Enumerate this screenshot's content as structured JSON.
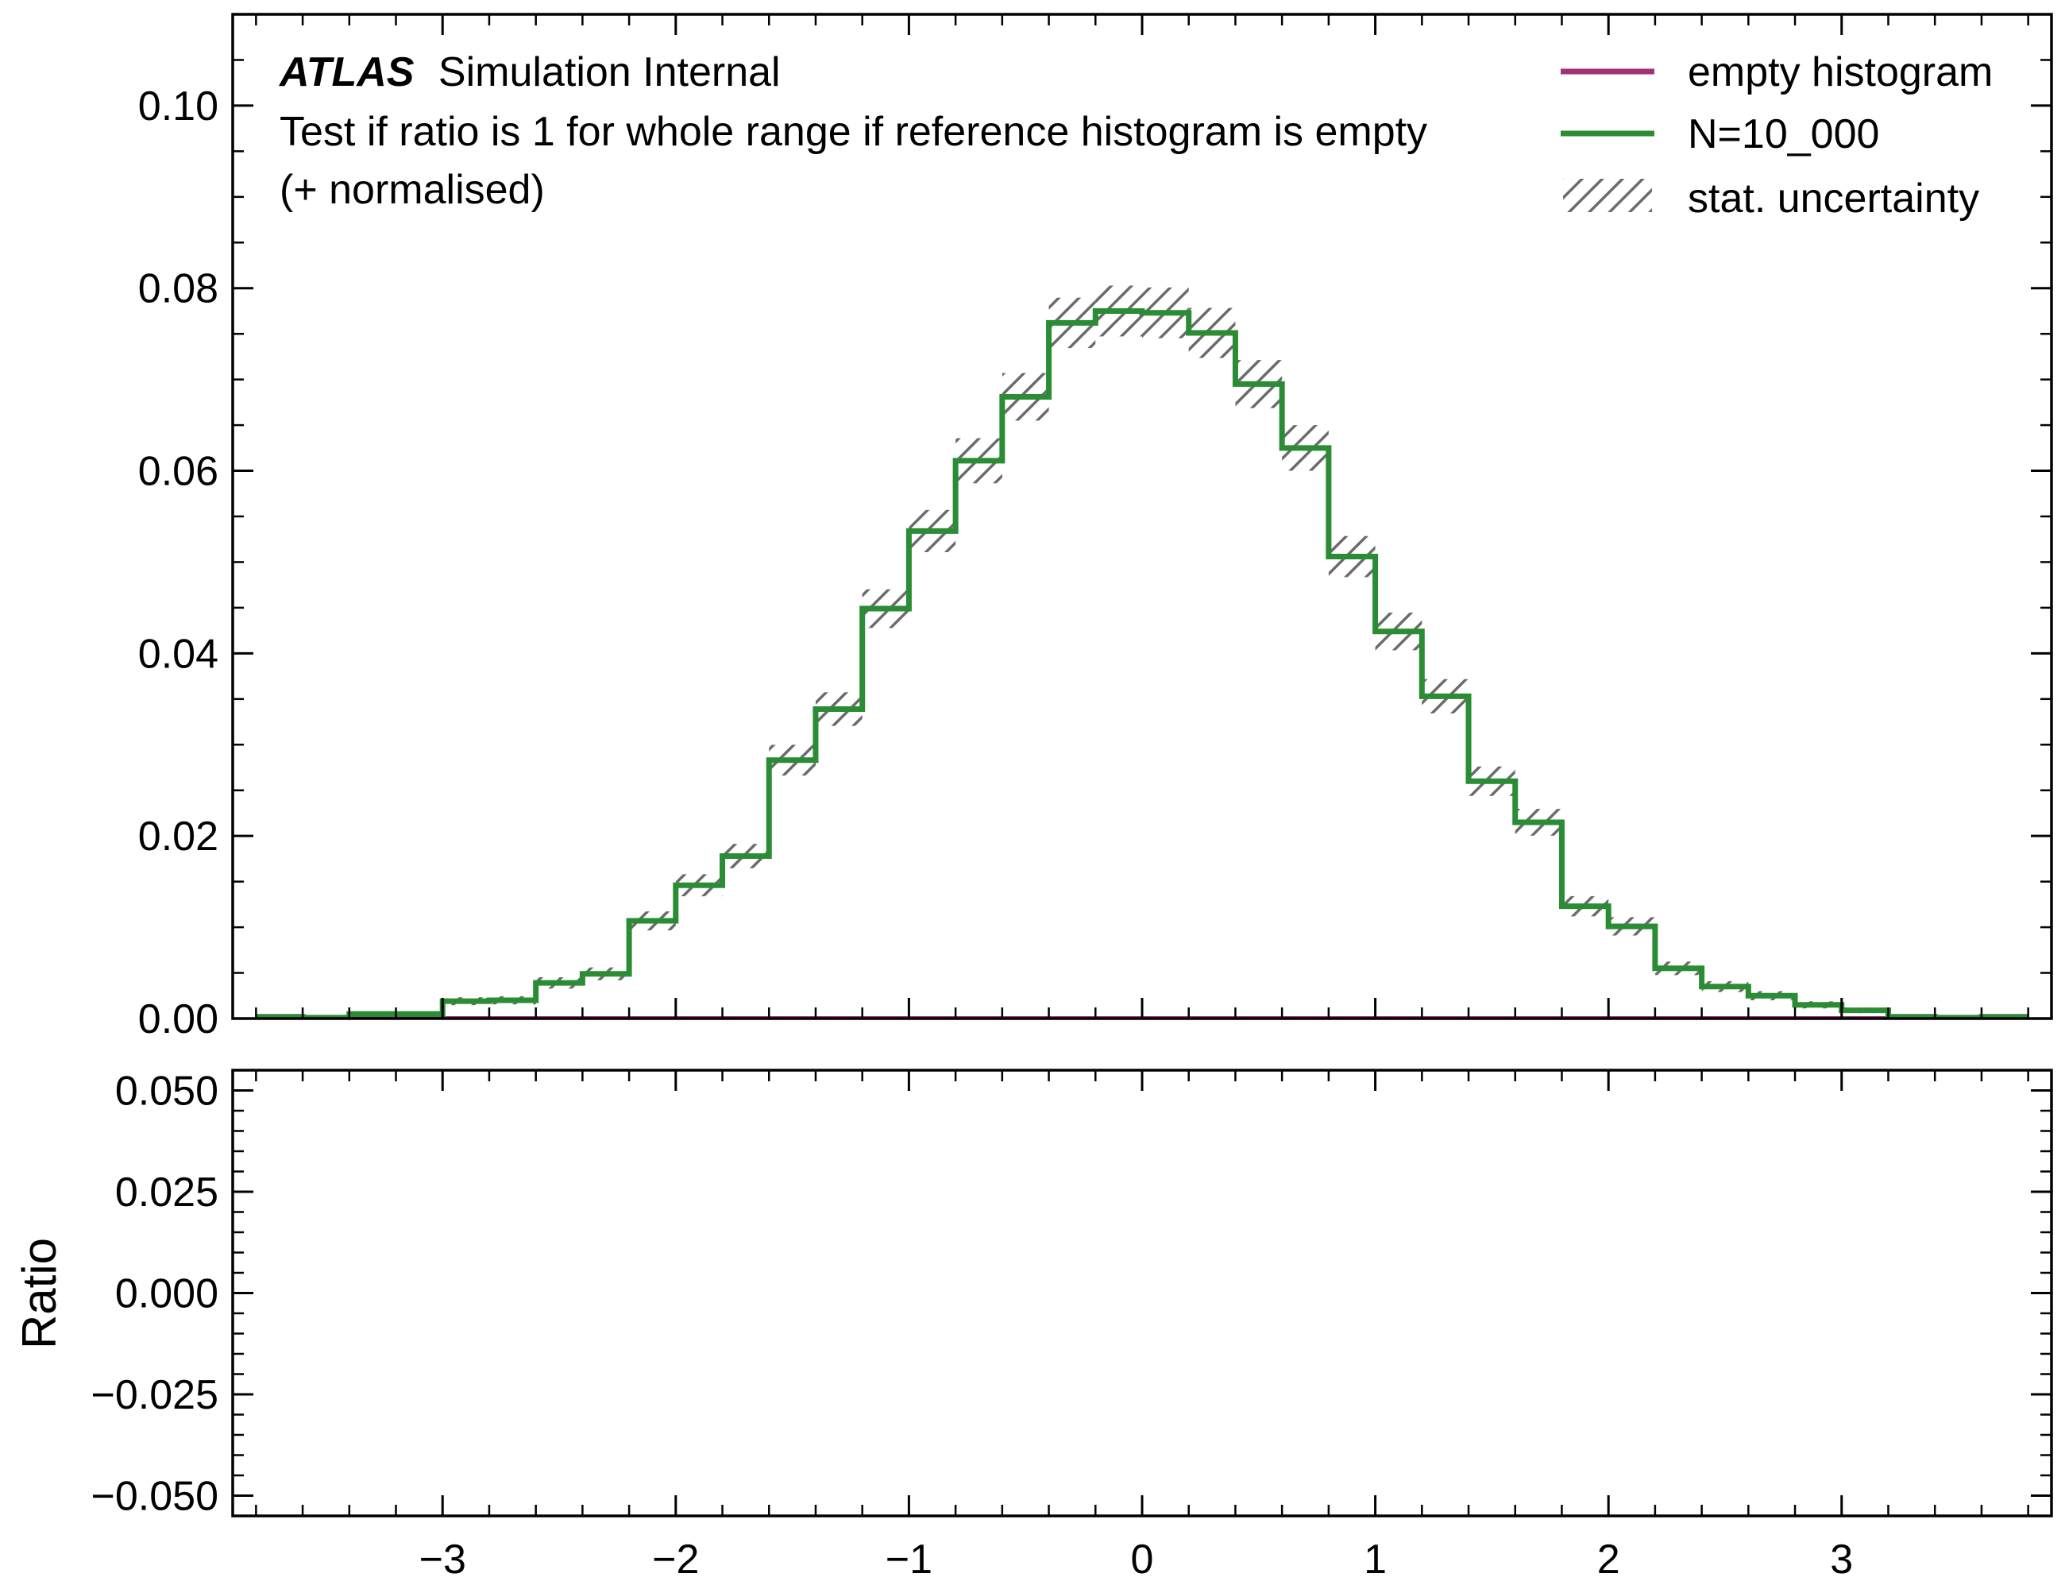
{
  "chart_data": {
    "type": "histogram",
    "experiment_label": "ATLAS",
    "experiment_status": "Simulation Internal",
    "annotation_lines": [
      "Test if ratio is 1 for whole range if reference histogram is empty",
      "(+ normalised)"
    ],
    "main_panel": {
      "ylim": [
        0,
        0.11
      ],
      "xlim": [
        -3.9,
        3.9
      ],
      "y_tick_labels": [
        "0.00",
        "0.02",
        "0.04",
        "0.06",
        "0.08",
        "0.10"
      ],
      "y_ticks": [
        0,
        0.02,
        0.04,
        0.06,
        0.08,
        0.1
      ],
      "bin_edges": [
        -3.8,
        -3.6,
        -3.4,
        -3.2,
        -3.0,
        -2.8,
        -2.6,
        -2.4,
        -2.2,
        -2.0,
        -1.8,
        -1.6,
        -1.4,
        -1.2,
        -1.0,
        -0.8,
        -0.6,
        -0.4,
        -0.2,
        0.0,
        0.2,
        0.4,
        0.6,
        0.8,
        1.0,
        1.2,
        1.4,
        1.6,
        1.8,
        2.0,
        2.2,
        2.4,
        2.6,
        2.8,
        3.0,
        3.2,
        3.4,
        3.6,
        3.8
      ],
      "series": [
        {
          "name": "empty histogram",
          "color": "#a2317a",
          "values": [
            0,
            0,
            0,
            0,
            0,
            0,
            0,
            0,
            0,
            0,
            0,
            0,
            0,
            0,
            0,
            0,
            0,
            0,
            0,
            0,
            0,
            0,
            0,
            0,
            0,
            0,
            0,
            0,
            0,
            0,
            0,
            0,
            0,
            0,
            0,
            0,
            0,
            0
          ]
        },
        {
          "name": "N=10_000",
          "color": "#2a8c34",
          "values": [
            0.0002,
            0.0001,
            0.0005,
            0.0005,
            0.0019,
            0.002,
            0.0039,
            0.0049,
            0.0107,
            0.0146,
            0.0178,
            0.0283,
            0.0339,
            0.0449,
            0.0534,
            0.0611,
            0.0681,
            0.0762,
            0.0775,
            0.0773,
            0.0751,
            0.0695,
            0.0625,
            0.0506,
            0.0424,
            0.0353,
            0.026,
            0.0215,
            0.0123,
            0.0101,
            0.0055,
            0.0035,
            0.0025,
            0.0015,
            0.0009,
            0.0002,
            0.0001,
            0.0002
          ]
        }
      ],
      "uncertainty_label": "stat. uncertainty",
      "uncertainty_color": "#6b6b6b"
    },
    "ratio_panel": {
      "ylabel": "Ratio",
      "ylim": [
        -0.055,
        0.055
      ],
      "y_ticks": [
        -0.05,
        -0.025,
        0.0,
        0.025,
        0.05
      ],
      "y_tick_labels": [
        "−0.050",
        "−0.025",
        "0.000",
        "0.025",
        "0.050"
      ]
    },
    "x_ticks": [
      -3,
      -2,
      -1,
      0,
      1,
      2,
      3
    ],
    "x_tick_labels": [
      "−3",
      "−2",
      "−1",
      "0",
      "1",
      "2",
      "3"
    ],
    "legend": {
      "placement": "top-right",
      "entries": [
        "empty histogram",
        "N=10_000",
        "stat. uncertainty"
      ]
    },
    "grid": false
  }
}
